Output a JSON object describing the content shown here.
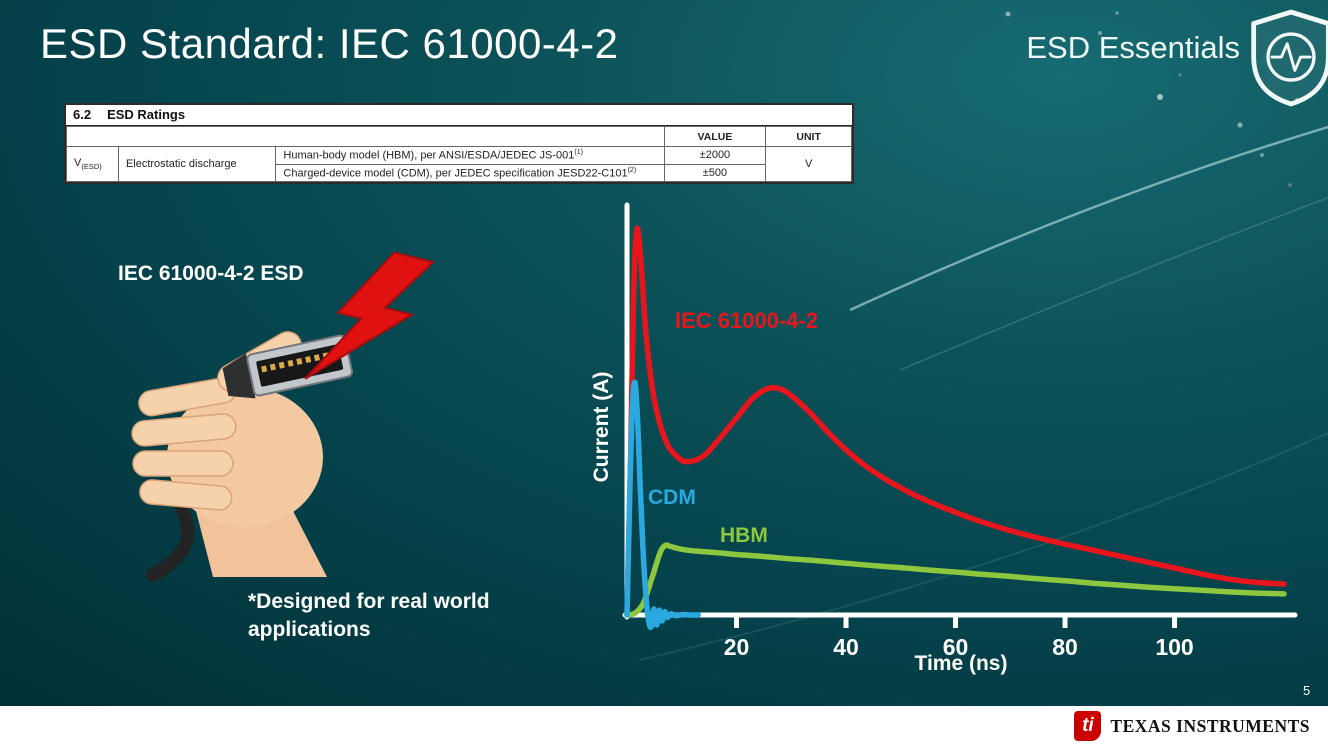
{
  "slide": {
    "title": "ESD Standard: IEC 61000-4-2",
    "brand_text": "ESD Essentials",
    "page_number": "5",
    "illustration_label": "IEC 61000-4-2 ESD",
    "footnote": "*Designed for real world\napplications",
    "footer": {
      "logo_glyph": "ti",
      "company": "TEXAS INSTRUMENTS"
    }
  },
  "ratings_table": {
    "section_number": "6.2",
    "section_title": "ESD Ratings",
    "value_header": "VALUE",
    "unit_header": "UNIT",
    "param_symbol": "V",
    "param_symbol_sub": "(ESD)",
    "param_name": "Electrostatic discharge",
    "rows": [
      {
        "desc": "Human-body model (HBM), per ANSI/ESDA/JEDEC JS-001",
        "sup": "(1)",
        "value": "±2000"
      },
      {
        "desc": "Charged-device model (CDM), per JEDEC specification JESD22-C101",
        "sup": "(2)",
        "value": "±500"
      }
    ],
    "unit": "V"
  },
  "chart_data": {
    "type": "line",
    "title": "",
    "xlabel": "Time (ns)",
    "ylabel": "Current (A)",
    "x_ticks": [
      20,
      40,
      60,
      80,
      100
    ],
    "x_range": [
      0,
      122
    ],
    "y_range": [
      0,
      1.0
    ],
    "note": "y-axis has no numeric tick labels; amplitudes normalized to IEC 61000-4-2 peak = 1.0",
    "legend_position": "inline-labels",
    "grid": false,
    "series": [
      {
        "name": "IEC 61000-4-2",
        "color": "#e8151c",
        "points": [
          [
            0,
            0
          ],
          [
            0.6,
            0.35
          ],
          [
            1.2,
            0.8
          ],
          [
            1.8,
            0.97
          ],
          [
            2.6,
            0.88
          ],
          [
            3.5,
            0.7
          ],
          [
            5,
            0.54
          ],
          [
            7,
            0.44
          ],
          [
            9,
            0.4
          ],
          [
            11,
            0.385
          ],
          [
            14,
            0.4
          ],
          [
            17,
            0.445
          ],
          [
            20,
            0.495
          ],
          [
            23,
            0.545
          ],
          [
            26,
            0.57
          ],
          [
            28.5,
            0.565
          ],
          [
            31,
            0.54
          ],
          [
            34,
            0.5
          ],
          [
            37,
            0.455
          ],
          [
            40,
            0.415
          ],
          [
            44,
            0.37
          ],
          [
            48,
            0.335
          ],
          [
            52,
            0.305
          ],
          [
            56,
            0.28
          ],
          [
            60,
            0.258
          ],
          [
            65,
            0.233
          ],
          [
            70,
            0.212
          ],
          [
            75,
            0.194
          ],
          [
            80,
            0.178
          ],
          [
            85,
            0.163
          ],
          [
            90,
            0.148
          ],
          [
            95,
            0.133
          ],
          [
            100,
            0.118
          ],
          [
            105,
            0.103
          ],
          [
            110,
            0.09
          ],
          [
            115,
            0.082
          ],
          [
            120,
            0.078
          ]
        ]
      },
      {
        "name": "HBM",
        "color": "#8dc63f",
        "points": [
          [
            0,
            0
          ],
          [
            1.5,
            0.005
          ],
          [
            3,
            0.03
          ],
          [
            4.5,
            0.09
          ],
          [
            6,
            0.155
          ],
          [
            7,
            0.175
          ],
          [
            8,
            0.172
          ],
          [
            10,
            0.165
          ],
          [
            13,
            0.16
          ],
          [
            16,
            0.157
          ],
          [
            20,
            0.152
          ],
          [
            25,
            0.147
          ],
          [
            30,
            0.141
          ],
          [
            35,
            0.136
          ],
          [
            40,
            0.13
          ],
          [
            45,
            0.124
          ],
          [
            50,
            0.119
          ],
          [
            55,
            0.113
          ],
          [
            60,
            0.108
          ],
          [
            65,
            0.102
          ],
          [
            70,
            0.097
          ],
          [
            75,
            0.091
          ],
          [
            80,
            0.086
          ],
          [
            85,
            0.08
          ],
          [
            90,
            0.075
          ],
          [
            95,
            0.07
          ],
          [
            100,
            0.066
          ],
          [
            105,
            0.062
          ],
          [
            110,
            0.058
          ],
          [
            115,
            0.055
          ],
          [
            120,
            0.053
          ]
        ]
      },
      {
        "name": "CDM",
        "color": "#2aa9e0",
        "points": [
          [
            0,
            0
          ],
          [
            0.4,
            0.25
          ],
          [
            0.9,
            0.5
          ],
          [
            1.4,
            0.585
          ],
          [
            1.9,
            0.5
          ],
          [
            2.4,
            0.33
          ],
          [
            2.9,
            0.17
          ],
          [
            3.4,
            0.06
          ],
          [
            3.9,
            -0.01
          ],
          [
            4.4,
            -0.03
          ],
          [
            4.9,
            0.015
          ],
          [
            5.4,
            -0.025
          ],
          [
            5.9,
            0.012
          ],
          [
            6.4,
            -0.015
          ],
          [
            6.9,
            0.008
          ],
          [
            7.4,
            -0.006
          ],
          [
            8,
            0.003
          ],
          [
            9,
            -0.002
          ],
          [
            10,
            0.001
          ],
          [
            11.5,
            0
          ],
          [
            13,
            0
          ]
        ]
      }
    ]
  }
}
